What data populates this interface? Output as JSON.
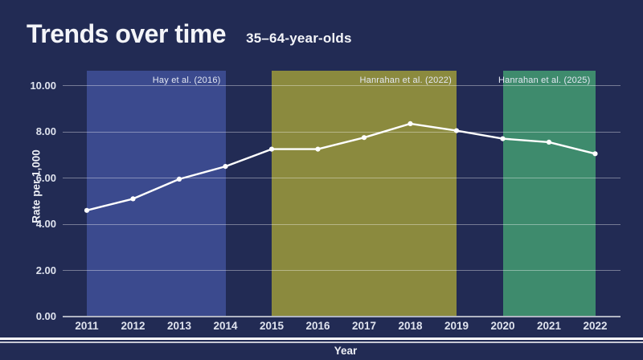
{
  "header": {
    "title": "Trends over time",
    "subtitle": "35–64-year-olds"
  },
  "colors": {
    "background": "#222b54",
    "line": "#ffffff",
    "grid": "rgba(255,255,255,0.38)",
    "region_blue": "#3b4a8e",
    "region_olive": "#8b8a3e",
    "region_green": "#3e8b6d"
  },
  "chart_data": {
    "type": "line",
    "title": "Trends over time",
    "subtitle": "35–64-year-olds",
    "xlabel": "Year",
    "ylabel": "Rate per 1,000",
    "x": [
      2011,
      2012,
      2013,
      2014,
      2015,
      2016,
      2017,
      2018,
      2019,
      2020,
      2021,
      2022
    ],
    "series": [
      {
        "name": "Rate per 1,000",
        "values": [
          4.6,
          5.1,
          5.95,
          6.5,
          7.25,
          7.25,
          7.75,
          8.35,
          8.05,
          7.7,
          7.55,
          7.05
        ],
        "color": "#ffffff",
        "marker": "circle"
      }
    ],
    "ylim": [
      0,
      10.6
    ],
    "y_ticks": [
      {
        "value": 0,
        "label": "0.00"
      },
      {
        "value": 2,
        "label": "2.00"
      },
      {
        "value": 4,
        "label": "4.00"
      },
      {
        "value": 6,
        "label": "6.00"
      },
      {
        "value": 8,
        "label": "8.00"
      },
      {
        "value": 10,
        "label": "10.00"
      }
    ],
    "grid": true,
    "legend": "none",
    "regions": [
      {
        "label": "Hay et al. (2016)",
        "from": 2011,
        "to": 2014,
        "color": "#3b4a8e"
      },
      {
        "label": "Hanrahan et al. (2022)",
        "from": 2015,
        "to": 2019,
        "color": "#8b8a3e"
      },
      {
        "label": "Hanrahan et al. (2025)",
        "from": 2020,
        "to": 2022,
        "color": "#3e8b6d"
      }
    ]
  }
}
